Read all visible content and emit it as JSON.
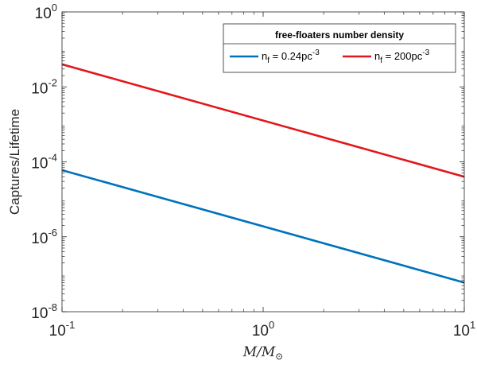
{
  "chart_data": {
    "type": "line",
    "x_scale": "log",
    "y_scale": "log",
    "xlim": [
      0.1,
      10
    ],
    "ylim": [
      1e-08,
      1
    ],
    "grid": false,
    "xlabel": "M/M_⊙",
    "xlabel_parts": {
      "main": "M/M",
      "sub": "⊙"
    },
    "ylabel": "Captures/Lifetime",
    "x_ticks": [
      {
        "value": 0.1,
        "base": "10",
        "exp": "-1"
      },
      {
        "value": 1,
        "base": "10",
        "exp": "0"
      },
      {
        "value": 10,
        "base": "10",
        "exp": "1"
      }
    ],
    "y_ticks": [
      {
        "value": 1e-08,
        "base": "10",
        "exp": "-8"
      },
      {
        "value": 1e-06,
        "base": "10",
        "exp": "-6"
      },
      {
        "value": 0.0001,
        "base": "10",
        "exp": "-4"
      },
      {
        "value": 0.01,
        "base": "10",
        "exp": "-2"
      },
      {
        "value": 1,
        "base": "10",
        "exp": "0"
      }
    ],
    "legend": {
      "title": "free-floaters number density",
      "placement": "top-right"
    },
    "series": [
      {
        "name": "n_f = 0.24pc^-3",
        "label_parts": {
          "n": "n",
          "sub": "f",
          "mid": " = 0.24pc",
          "sup": "-3"
        },
        "color": "#0072BD",
        "x": [
          0.1,
          10
        ],
        "y": [
          6e-05,
          6e-08
        ]
      },
      {
        "name": "n_f = 200pc^-3",
        "label_parts": {
          "n": "n",
          "sub": "f",
          "mid": " = 200pc",
          "sup": "-3"
        },
        "color": "#D95319",
        "color_override": "#E3161B",
        "x": [
          0.1,
          10
        ],
        "y": [
          0.04,
          4e-05
        ]
      }
    ]
  }
}
